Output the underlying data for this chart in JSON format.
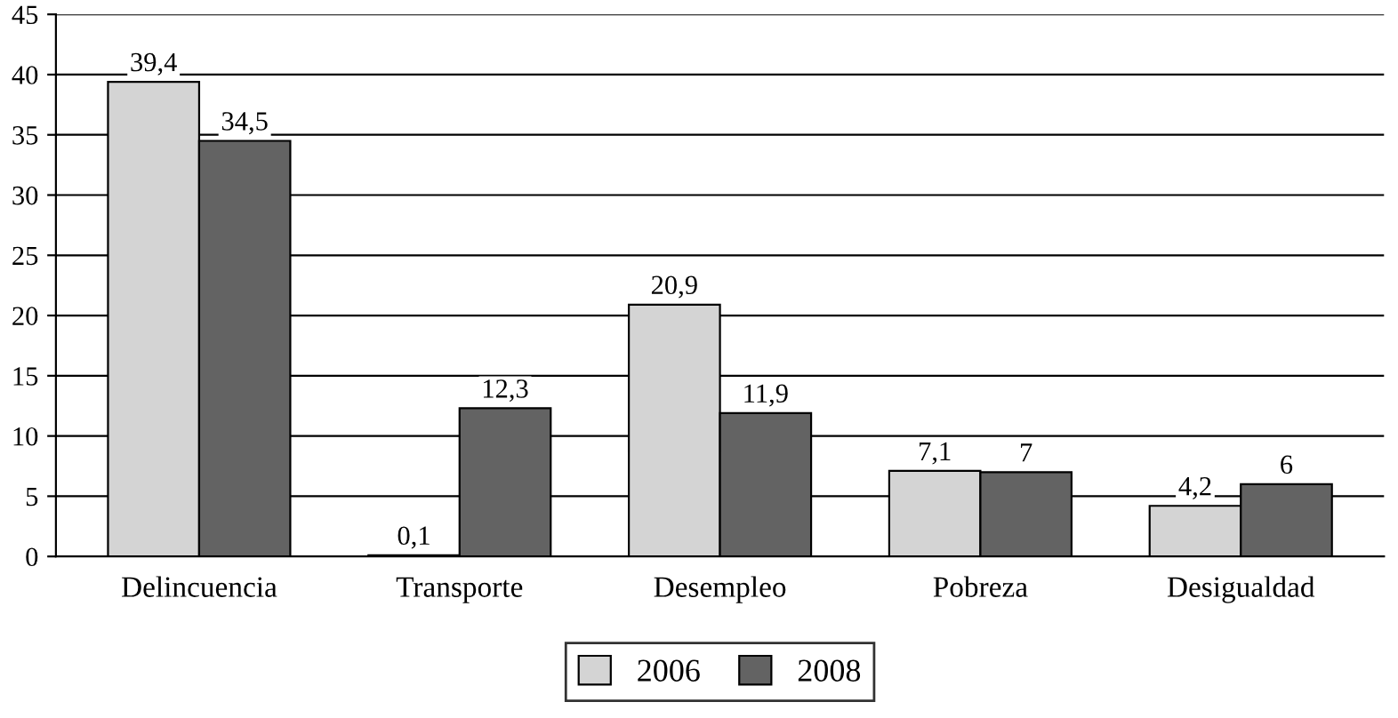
{
  "chart_data": {
    "type": "bar",
    "categories": [
      "Delincuencia",
      "Transporte",
      "Desempleo",
      "Pobreza",
      "Desigualdad"
    ],
    "series": [
      {
        "name": "2006",
        "color": "#d4d4d4",
        "values": [
          39.4,
          0.1,
          20.9,
          7.1,
          4.2
        ],
        "value_labels": [
          "39,4",
          "0,1",
          "20,9",
          "7,1",
          "4,2"
        ]
      },
      {
        "name": "2008",
        "color": "#636363",
        "values": [
          34.5,
          12.3,
          11.9,
          7,
          6
        ],
        "value_labels": [
          "34,5",
          "12,3",
          "11,9",
          "7",
          "6"
        ]
      }
    ],
    "ylim": [
      0,
      45
    ],
    "yticks": [
      0,
      5,
      10,
      15,
      20,
      25,
      30,
      35,
      40,
      45
    ],
    "grid": "y",
    "legend": "bottom"
  }
}
